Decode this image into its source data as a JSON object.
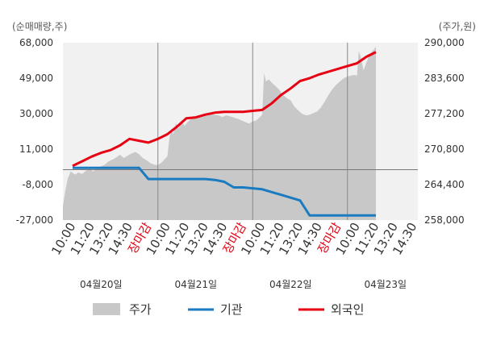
{
  "chart_data": {
    "type": "line",
    "left_axis": {
      "unit_label": "(순매매량,주)",
      "range": [
        -27000,
        68000
      ],
      "ticks": [
        68000,
        49000,
        30000,
        11000,
        -8000,
        -27000
      ],
      "tick_labels": [
        "68,000",
        "49,000",
        "30,000",
        "11,000",
        "-8,000",
        "-27,000"
      ]
    },
    "right_axis": {
      "unit_label": "(주가,원)",
      "range": [
        258000,
        290000
      ],
      "ticks": [
        290000,
        283600,
        277200,
        270800,
        264400,
        258000
      ],
      "tick_labels": [
        "290,000",
        "283,600",
        "277,200",
        "270,800",
        "264,400",
        "258,000"
      ]
    },
    "x_labels": [
      {
        "label": "10:00",
        "limit": false
      },
      {
        "label": "11:20",
        "limit": false
      },
      {
        "label": "13:20",
        "limit": false
      },
      {
        "label": "14:30",
        "limit": false
      },
      {
        "label": "장마감",
        "limit": true
      },
      {
        "label": "10:00",
        "limit": false
      },
      {
        "label": "11:20",
        "limit": false
      },
      {
        "label": "13:20",
        "limit": false
      },
      {
        "label": "14:30",
        "limit": false
      },
      {
        "label": "장마감",
        "limit": true
      },
      {
        "label": "10:00",
        "limit": false
      },
      {
        "label": "11:20",
        "limit": false
      },
      {
        "label": "13:20",
        "limit": false
      },
      {
        "label": "14:30",
        "limit": false
      },
      {
        "label": "장마감",
        "limit": true
      },
      {
        "label": "10:00",
        "limit": false
      },
      {
        "label": "11:20",
        "limit": false
      },
      {
        "label": "13:20",
        "limit": false
      },
      {
        "label": "14:30",
        "limit": false
      }
    ],
    "dates": [
      "04월20일",
      "04월21일",
      "04월22일",
      "04월23일"
    ],
    "day_start_index": [
      0,
      5,
      10,
      15
    ],
    "zero_line": 0,
    "series": [
      {
        "name": "주가",
        "kind": "area",
        "axis": "right",
        "color": "#c8c8c8",
        "points": [
          [
            -0.75,
            258000
          ],
          [
            -0.65,
            258500
          ],
          [
            -0.55,
            260500
          ],
          [
            -0.4,
            263000
          ],
          [
            -0.25,
            265500
          ],
          [
            -0.1,
            266800
          ],
          [
            0.0,
            266500
          ],
          [
            0.15,
            266200
          ],
          [
            0.3,
            266600
          ],
          [
            0.5,
            266300
          ],
          [
            0.7,
            266900
          ],
          [
            0.9,
            267200
          ],
          [
            1.1,
            266800
          ],
          [
            1.3,
            267400
          ],
          [
            1.5,
            267700
          ],
          [
            1.7,
            268000
          ],
          [
            1.9,
            268600
          ],
          [
            2.1,
            268900
          ],
          [
            2.3,
            269300
          ],
          [
            2.5,
            269800
          ],
          [
            2.7,
            269200
          ],
          [
            2.9,
            269600
          ],
          [
            3.1,
            270000
          ],
          [
            3.3,
            270300
          ],
          [
            3.5,
            269900
          ],
          [
            3.7,
            269200
          ],
          [
            3.9,
            268800
          ],
          [
            4.1,
            268300
          ],
          [
            4.3,
            268000
          ],
          [
            4.5,
            267900
          ],
          [
            4.7,
            268400
          ],
          [
            5.0,
            269500
          ],
          [
            5.1,
            272500
          ],
          [
            5.2,
            274500
          ],
          [
            5.3,
            273500
          ],
          [
            5.45,
            275500
          ],
          [
            5.6,
            274500
          ],
          [
            5.75,
            276000
          ],
          [
            5.9,
            275000
          ],
          [
            6.1,
            275800
          ],
          [
            6.3,
            276400
          ],
          [
            6.5,
            276800
          ],
          [
            6.7,
            276900
          ],
          [
            6.9,
            277100
          ],
          [
            7.1,
            277200
          ],
          [
            7.3,
            277100
          ],
          [
            7.5,
            277000
          ],
          [
            7.7,
            276900
          ],
          [
            7.9,
            276600
          ],
          [
            8.1,
            276900
          ],
          [
            8.3,
            276700
          ],
          [
            8.5,
            276500
          ],
          [
            8.7,
            276300
          ],
          [
            8.9,
            276000
          ],
          [
            9.1,
            275700
          ],
          [
            9.3,
            275400
          ],
          [
            9.5,
            275800
          ],
          [
            9.7,
            276000
          ],
          [
            10.0,
            277000
          ],
          [
            10.1,
            284500
          ],
          [
            10.2,
            283000
          ],
          [
            10.35,
            283400
          ],
          [
            10.5,
            282800
          ],
          [
            10.7,
            282200
          ],
          [
            10.9,
            281500
          ],
          [
            11.1,
            280600
          ],
          [
            11.3,
            280000
          ],
          [
            11.5,
            279600
          ],
          [
            11.7,
            278500
          ],
          [
            11.9,
            277800
          ],
          [
            12.1,
            277200
          ],
          [
            12.3,
            276900
          ],
          [
            12.5,
            277000
          ],
          [
            12.7,
            277300
          ],
          [
            12.9,
            277600
          ],
          [
            13.1,
            278300
          ],
          [
            13.3,
            279400
          ],
          [
            13.5,
            280600
          ],
          [
            13.7,
            281600
          ],
          [
            13.9,
            282400
          ],
          [
            14.1,
            283000
          ],
          [
            14.3,
            283600
          ],
          [
            14.5,
            283900
          ],
          [
            14.7,
            284100
          ],
          [
            14.9,
            284200
          ],
          [
            15.0,
            284000
          ],
          [
            15.1,
            288500
          ],
          [
            15.2,
            287500
          ],
          [
            15.35,
            285000
          ],
          [
            15.5,
            286500
          ],
          [
            15.7,
            288000
          ],
          [
            15.9,
            288800
          ],
          [
            16.0,
            289300
          ]
        ]
      },
      {
        "name": "기관",
        "kind": "line",
        "axis": "left",
        "color": "#1a7bc1",
        "points": [
          [
            0.0,
            1000
          ],
          [
            0.5,
            1000
          ],
          [
            1.0,
            1000
          ],
          [
            1.5,
            1000
          ],
          [
            2.0,
            1000
          ],
          [
            2.5,
            1000
          ],
          [
            3.0,
            1000
          ],
          [
            3.5,
            1000
          ],
          [
            4.0,
            -5000
          ],
          [
            4.5,
            -5000
          ],
          [
            5.0,
            -5000
          ],
          [
            5.5,
            -5000
          ],
          [
            6.0,
            -5000
          ],
          [
            6.5,
            -5000
          ],
          [
            7.0,
            -5000
          ],
          [
            7.5,
            -5500
          ],
          [
            8.0,
            -6500
          ],
          [
            8.5,
            -9500
          ],
          [
            9.0,
            -9500
          ],
          [
            9.5,
            -10000
          ],
          [
            10.0,
            -10500
          ],
          [
            10.5,
            -12000
          ],
          [
            11.0,
            -13500
          ],
          [
            11.5,
            -15000
          ],
          [
            12.0,
            -16500
          ],
          [
            12.5,
            -24500
          ],
          [
            13.0,
            -24500
          ],
          [
            13.5,
            -24500
          ],
          [
            14.0,
            -24500
          ],
          [
            14.5,
            -24500
          ],
          [
            15.0,
            -24500
          ],
          [
            15.5,
            -24500
          ],
          [
            16.0,
            -24500
          ]
        ]
      },
      {
        "name": "외국인",
        "kind": "line",
        "axis": "left",
        "color": "#e60012",
        "points": [
          [
            0.0,
            2000
          ],
          [
            0.5,
            4500
          ],
          [
            1.0,
            7000
          ],
          [
            1.5,
            9000
          ],
          [
            2.0,
            10500
          ],
          [
            2.5,
            13000
          ],
          [
            3.0,
            16500
          ],
          [
            3.5,
            15500
          ],
          [
            4.0,
            14500
          ],
          [
            4.5,
            16500
          ],
          [
            5.0,
            19000
          ],
          [
            5.5,
            23000
          ],
          [
            6.0,
            27500
          ],
          [
            6.5,
            28000
          ],
          [
            7.0,
            29500
          ],
          [
            7.5,
            30500
          ],
          [
            8.0,
            31000
          ],
          [
            8.5,
            31000
          ],
          [
            9.0,
            31000
          ],
          [
            9.5,
            31500
          ],
          [
            10.0,
            32000
          ],
          [
            10.5,
            35500
          ],
          [
            11.0,
            40000
          ],
          [
            11.5,
            43500
          ],
          [
            12.0,
            47500
          ],
          [
            12.5,
            49000
          ],
          [
            13.0,
            51000
          ],
          [
            13.5,
            52500
          ],
          [
            14.0,
            54000
          ],
          [
            14.5,
            55500
          ],
          [
            15.0,
            57000
          ],
          [
            15.5,
            60500
          ],
          [
            16.0,
            63000
          ]
        ]
      }
    ],
    "legend": [
      {
        "name": "주가",
        "swatch": "block",
        "color": "#c8c8c8"
      },
      {
        "name": "기관",
        "swatch": "line",
        "color": "#1a7bc1"
      },
      {
        "name": "외국인",
        "swatch": "line",
        "color": "#e60012"
      }
    ],
    "grid": false
  }
}
